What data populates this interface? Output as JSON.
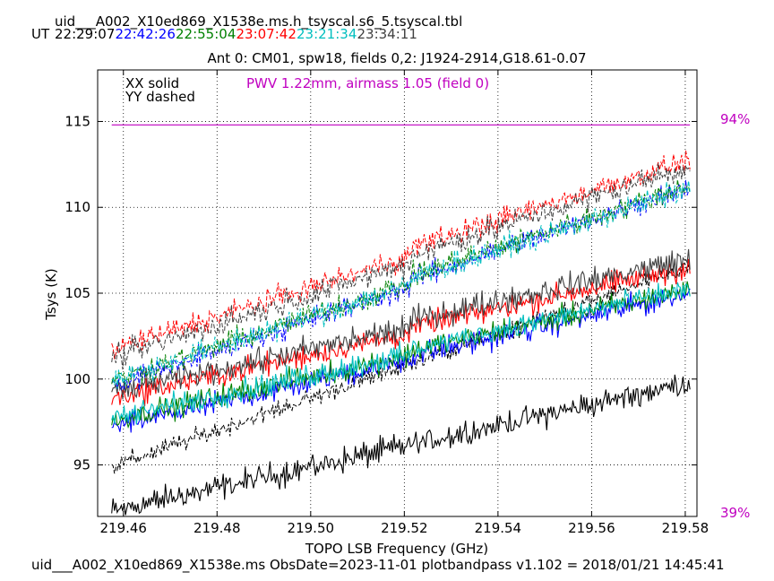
{
  "header": {
    "filename": "uid___A002_X10ed869_X1538e.ms.h_tsyscal.s6_5.tsyscal.tbl",
    "ut_label": "UT",
    "times": [
      {
        "text": "22:29:07",
        "color": "#000000"
      },
      {
        "text": "22:42:26",
        "color": "#0000ff"
      },
      {
        "text": "22:55:04",
        "color": "#008000"
      },
      {
        "text": "23:07:42",
        "color": "#ff0000"
      },
      {
        "text": "23:21:34",
        "color": "#00bfbf"
      },
      {
        "text": "23:34:11",
        "color": "#404040"
      }
    ]
  },
  "footer": {
    "text": "uid___A002_X10ed869_X1538e.ms  ObsDate=2023-11-01   plotbandpass v1.102 = 2018/01/21 14:45:41"
  },
  "chart_data": {
    "type": "line",
    "title": "Ant 0: CM01,  spw18,  fields 0,2: J1924-2914,G18.61-0.07",
    "xlabel": "TOPO LSB Frequency (GHz)",
    "ylabel": "Tsys (K)",
    "xlim": [
      219.4545,
      219.5825
    ],
    "ylim": [
      92,
      118
    ],
    "xticks": [
      219.46,
      219.48,
      219.5,
      219.52,
      219.54,
      219.56,
      219.58
    ],
    "xtick_labels": [
      "219.46",
      "219.48",
      "219.50",
      "219.52",
      "219.54",
      "219.56",
      "219.58"
    ],
    "yticks": [
      95,
      100,
      105,
      110,
      115
    ],
    "ytick_labels": [
      "95",
      "100",
      "105",
      "110",
      "115"
    ],
    "grid": true,
    "legend_lines": [
      "XX solid",
      "YY dashed"
    ],
    "annotation": {
      "text": "PWV 1.22mm, airmass 1.05 (field 0)",
      "color": "#c000c0"
    },
    "right_axis": {
      "top_label": "94%",
      "bottom_label": "39%",
      "color": "#c000c0"
    },
    "atm_line": {
      "y": 114.8,
      "color": "#c000c0"
    },
    "gap": [
      219.5175,
      219.5215
    ],
    "series": [
      {
        "color": "#000000",
        "pol": "XX",
        "y_start": 92.3,
        "y_end": 99.8,
        "noise": 0.5
      },
      {
        "color": "#000000",
        "pol": "YY",
        "y_start": 94.9,
        "y_end": 106.5,
        "noise": 0.35
      },
      {
        "color": "#0000ff",
        "pol": "XX",
        "y_start": 97.2,
        "y_end": 104.8,
        "noise": 0.45,
        "jump": 0.5
      },
      {
        "color": "#008000",
        "pol": "XX",
        "y_start": 97.6,
        "y_end": 105.0,
        "noise": 0.45,
        "jump": 0.6
      },
      {
        "color": "#ff0000",
        "pol": "XX",
        "y_start": 98.9,
        "y_end": 106.2,
        "noise": 0.45,
        "jump": 0.8
      },
      {
        "color": "#00bfbf",
        "pol": "XX",
        "y_start": 97.7,
        "y_end": 105.0,
        "noise": 0.45,
        "jump": 0.7
      },
      {
        "color": "#404040",
        "pol": "XX",
        "y_start": 99.2,
        "y_end": 106.6,
        "noise": 0.5,
        "jump": 1.0
      },
      {
        "color": "#0000ff",
        "pol": "YY",
        "y_start": 99.6,
        "y_end": 110.8,
        "noise": 0.45,
        "jump": 1.0
      },
      {
        "color": "#008000",
        "pol": "YY",
        "y_start": 99.9,
        "y_end": 110.9,
        "noise": 0.45,
        "jump": 1.0
      },
      {
        "color": "#00bfbf",
        "pol": "YY",
        "y_start": 99.9,
        "y_end": 110.7,
        "noise": 0.45,
        "jump": 1.0
      },
      {
        "color": "#ff0000",
        "pol": "YY",
        "y_start": 101.7,
        "y_end": 112.3,
        "noise": 0.45,
        "jump": 1.2
      },
      {
        "color": "#404040",
        "pol": "YY",
        "y_start": 101.2,
        "y_end": 112.0,
        "noise": 0.5,
        "jump": 1.0
      }
    ]
  }
}
